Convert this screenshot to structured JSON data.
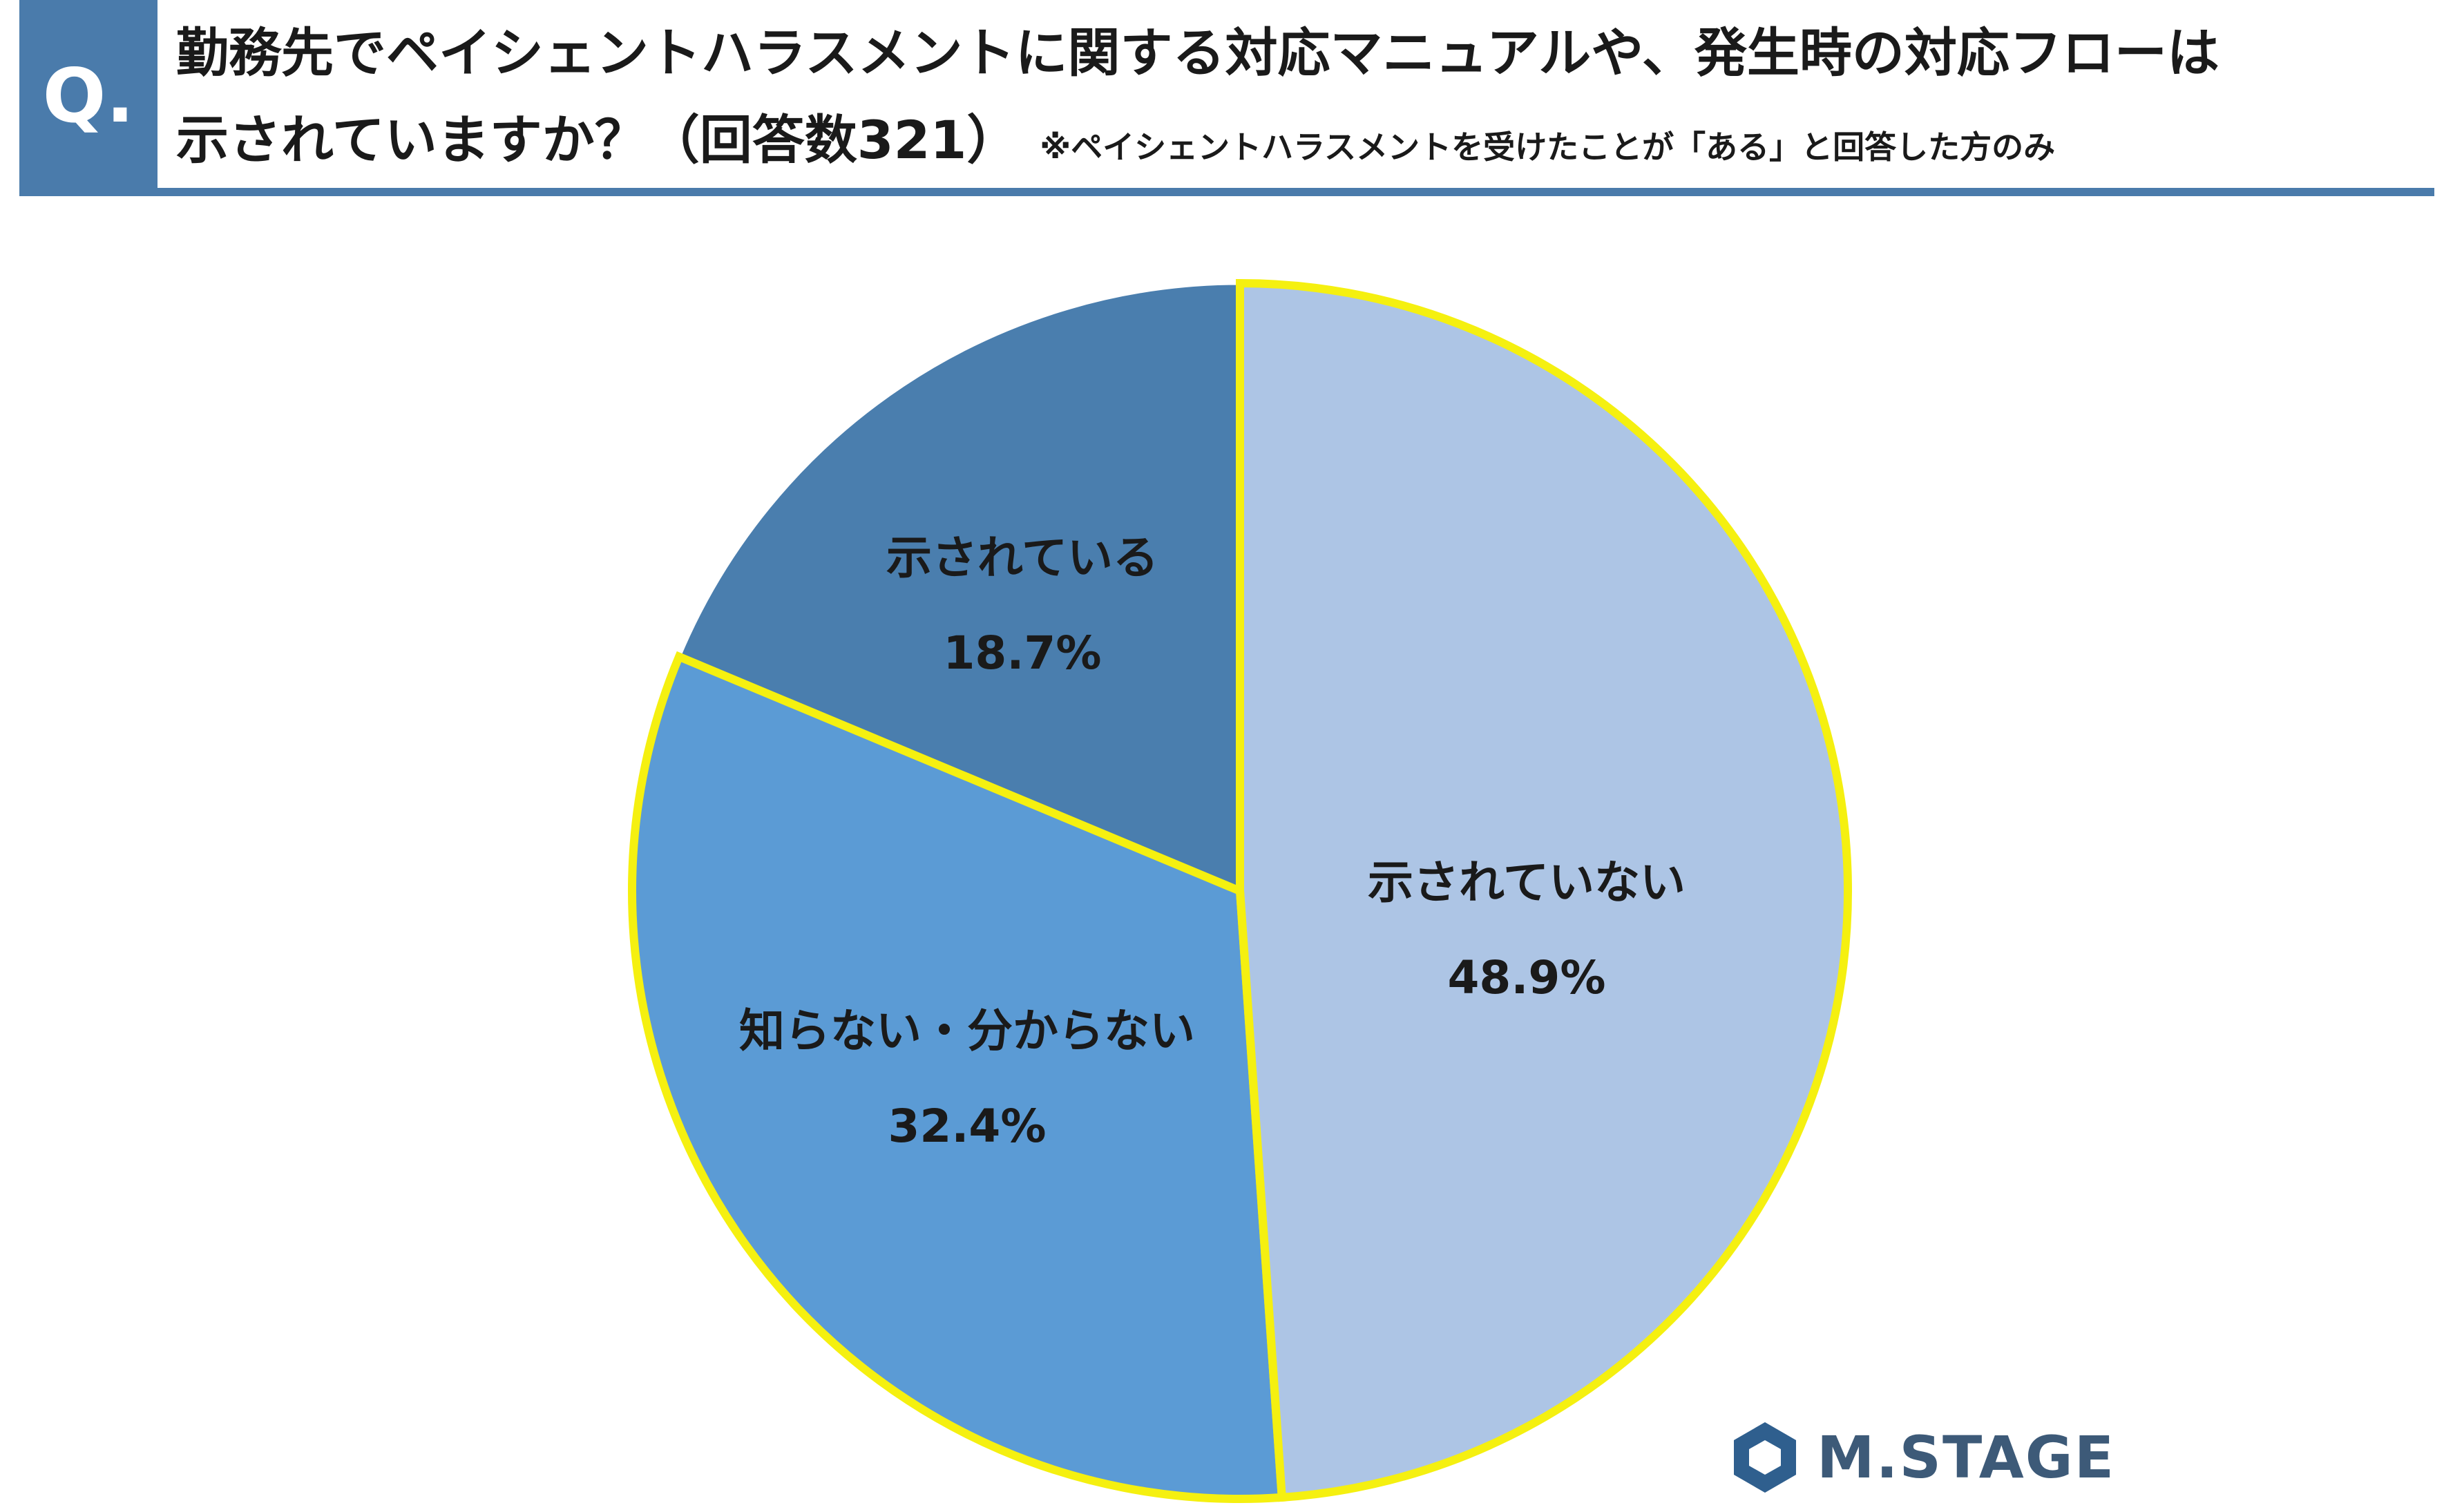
{
  "header": {
    "badge": "Q.",
    "question_line1": "勤務先でペイシェントハラスメントに関する対応マニュアルや、発生時の対応フローは",
    "question_line2": "示されていますか？（回答数321）",
    "note": "※ペイシェントハラスメントを受けたことが「ある」と回答した方のみ"
  },
  "chart_data": {
    "type": "pie",
    "title": "",
    "slices": [
      {
        "label": "示されていない",
        "value": 48.9,
        "value_label": "48.9%",
        "color": "#adc5e5",
        "highlight": true
      },
      {
        "label": "知らない・分からない",
        "value": 32.4,
        "value_label": "32.4%",
        "color": "#5b9bd5",
        "highlight": true
      },
      {
        "label": "示されている",
        "value": 18.7,
        "value_label": "18.7%",
        "color": "#4a7eae",
        "highlight": false
      }
    ],
    "highlight_color": "#f5f010",
    "legend": "none"
  },
  "logo": {
    "text": "M.STAGE",
    "icon": "mstage-hexagon-icon",
    "color": "#3d5a78"
  }
}
